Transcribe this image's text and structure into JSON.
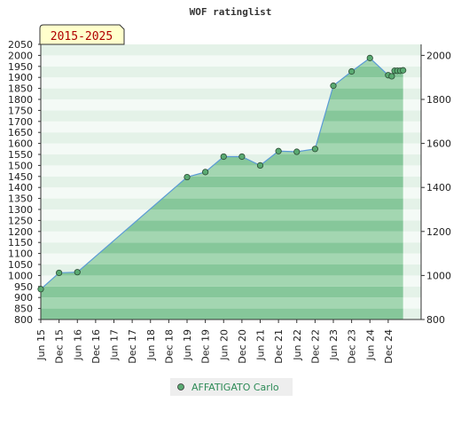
{
  "chart_data": {
    "type": "area",
    "title": "WOF ratinglist",
    "period_label": "2015-2025",
    "ylim": [
      800,
      2050
    ],
    "y_ticks": [
      800,
      850,
      900,
      950,
      1000,
      1050,
      1100,
      1150,
      1200,
      1250,
      1300,
      1350,
      1400,
      1450,
      1500,
      1550,
      1600,
      1650,
      1700,
      1750,
      1800,
      1850,
      1900,
      1950,
      2000,
      2050
    ],
    "y_ticks_right": [
      800,
      1000,
      1200,
      1400,
      1600,
      1800,
      2000
    ],
    "x_ticks": [
      "Jun 15",
      "Dec 15",
      "Jun 16",
      "Dec 16",
      "Jun 17",
      "Dec 17",
      "Jun 18",
      "Dec 18",
      "Jun 19",
      "Dec 19",
      "Jun 20",
      "Dec 20",
      "Jun 21",
      "Dec 21",
      "Jun 22",
      "Dec 22",
      "Jun 23",
      "Dec 23",
      "Jun 24",
      "Dec 24"
    ],
    "series": [
      {
        "name": "AFFATIGATO Carlo",
        "color": "#5aaa72",
        "points": [
          {
            "x": "Jun 15",
            "y": 938
          },
          {
            "x": "Dec 15",
            "y": 1012
          },
          {
            "x": "Jun 16",
            "y": 1015
          },
          {
            "x": "Jun 19",
            "y": 1447
          },
          {
            "x": "Dec 19",
            "y": 1470
          },
          {
            "x": "Jun 20",
            "y": 1540
          },
          {
            "x": "Dec 20",
            "y": 1540
          },
          {
            "x": "Jun 21",
            "y": 1500
          },
          {
            "x": "Dec 21",
            "y": 1565
          },
          {
            "x": "Jun 22",
            "y": 1562
          },
          {
            "x": "Dec 22",
            "y": 1575
          },
          {
            "x": "Jun 23",
            "y": 1862
          },
          {
            "x": "Dec 23",
            "y": 1927
          },
          {
            "x": "Jun 24",
            "y": 1988
          },
          {
            "x": "Dec 24",
            "y": 1910
          },
          {
            "x": "Dec 24",
            "y": 1905
          },
          {
            "x": "Dec 24",
            "y": 1930
          },
          {
            "x": "Dec 24",
            "y": 1930
          },
          {
            "x": "Dec 24",
            "y": 1930
          },
          {
            "x": "Dec 24",
            "y": 1932
          }
        ]
      }
    ]
  },
  "legend": {
    "label": "AFFATIGATO Carlo"
  },
  "colors": {
    "area": "#7cc08f",
    "line": "#5b9bd5",
    "marker": "#5aaa72",
    "band_light": "#e6f3ea",
    "band_dark": "#b7dcc2"
  }
}
